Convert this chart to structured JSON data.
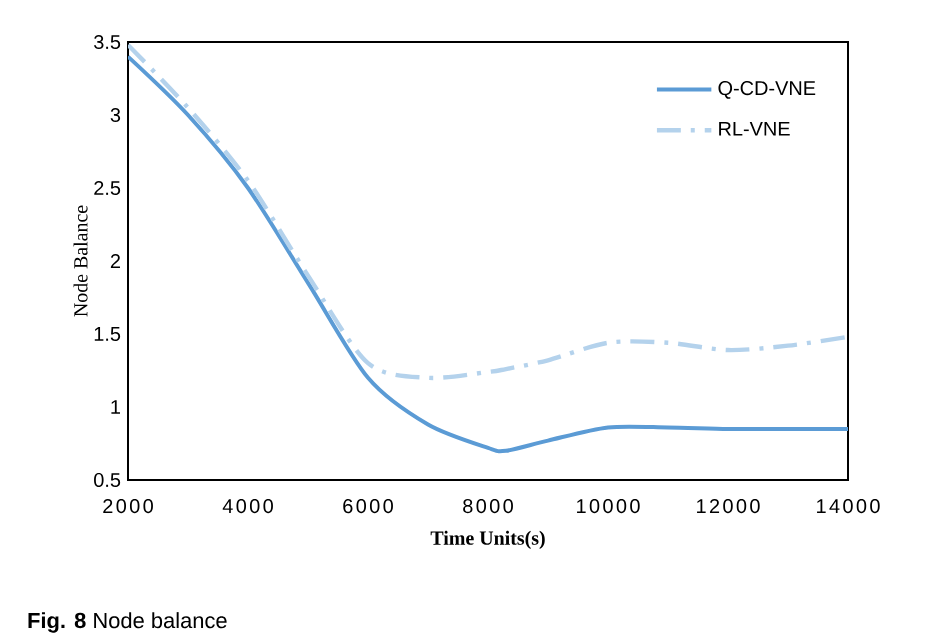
{
  "chart_data": {
    "type": "line",
    "xlabel": "Time Units(s)",
    "ylabel": "Node Balance",
    "annotations": [
      "**Fig. 8** Node balance"
    ],
    "x": [
      2000,
      3000,
      4000,
      5000,
      6000,
      7000,
      8000,
      8300,
      9000,
      10000,
      11000,
      12000,
      13000,
      14000
    ],
    "series": [
      {
        "name": "Q-CD-VNE",
        "color": "#5b9bd5",
        "line_style": "solid",
        "values": [
          3.4,
          3.0,
          2.5,
          1.85,
          1.2,
          0.88,
          0.72,
          0.7,
          0.77,
          0.86,
          0.86,
          0.85,
          0.85,
          0.85
        ]
      },
      {
        "name": "RL-VNE",
        "color": "#b4d2ec",
        "line_style": "dashed",
        "values": [
          3.48,
          3.05,
          2.55,
          1.9,
          1.3,
          1.2,
          1.24,
          1.26,
          1.32,
          1.44,
          1.44,
          1.39,
          1.42,
          1.48
        ]
      }
    ],
    "xlim": [
      2000,
      14000
    ],
    "xticks": [
      2000,
      4000,
      6000,
      8000,
      10000,
      12000,
      14000
    ],
    "ylim": [
      0.5,
      3.5
    ],
    "yticks": [
      0.5,
      1,
      1.5,
      2,
      2.5,
      3,
      3.5
    ],
    "grid": false,
    "legend": "top right",
    "marker": "none"
  }
}
